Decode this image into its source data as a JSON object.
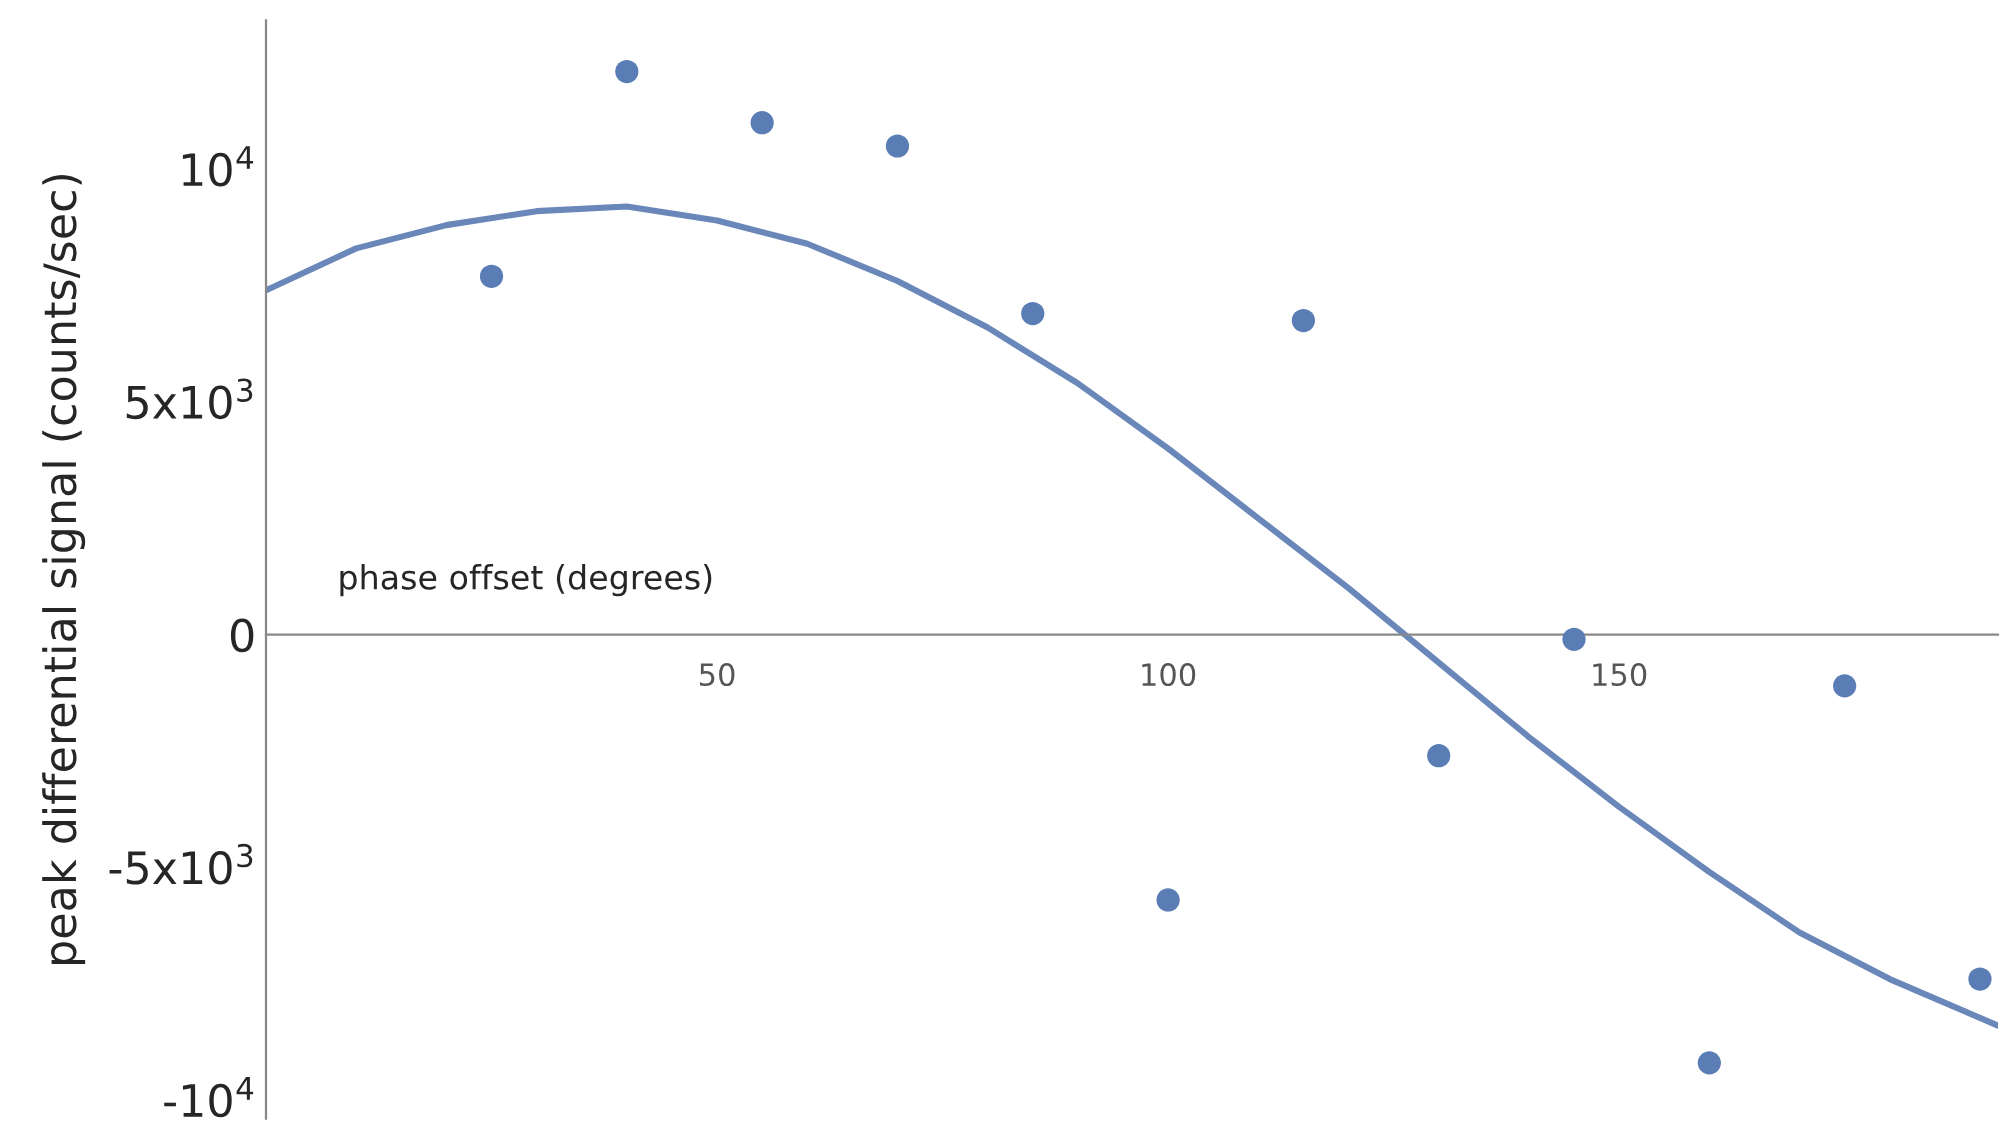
{
  "chart_data": {
    "type": "scatter",
    "xlabel": "phase offset (degrees)",
    "ylabel": "peak differential signal (counts/sec)",
    "xlim": [
      0,
      192
    ],
    "xticks": [
      50,
      100,
      150
    ],
    "ylim": [
      -10400,
      13200
    ],
    "yticks": [
      {
        "value": 10000,
        "label": "10$^{4}$"
      },
      {
        "value": 5000,
        "label": "5x10$^{3}$"
      },
      0,
      {
        "value": -5000,
        "label": "-5x10$^{3}$"
      },
      {
        "value": -10000,
        "label": "-10$^{4}$"
      }
    ],
    "grid": false,
    "legend": false,
    "marker": "circle",
    "series": [
      {
        "color": "#5b7db5",
        "x": [
          25,
          40,
          55,
          70,
          85,
          100,
          115,
          130,
          145,
          160,
          175,
          190
        ],
        "values": [
          7700,
          12100,
          11000,
          10500,
          6900,
          -5700,
          6750,
          -2600,
          -100,
          -9200,
          -1100,
          -7400
        ]
      },
      {
        "type": "line",
        "color": "#6a87b9",
        "line_style": "solid",
        "marker": "none",
        "x": [
          0,
          10,
          20,
          30,
          40,
          50,
          60,
          70,
          80,
          90,
          100,
          110,
          120,
          130,
          140,
          150,
          160,
          170,
          180,
          192
        ],
        "values": [
          7400,
          8300,
          8800,
          9100,
          9200,
          8900,
          8400,
          7600,
          6600,
          5400,
          4000,
          2500,
          1000,
          -600,
          -2200,
          -3700,
          -5100,
          -6400,
          -7400,
          -8400
        ]
      }
    ]
  }
}
